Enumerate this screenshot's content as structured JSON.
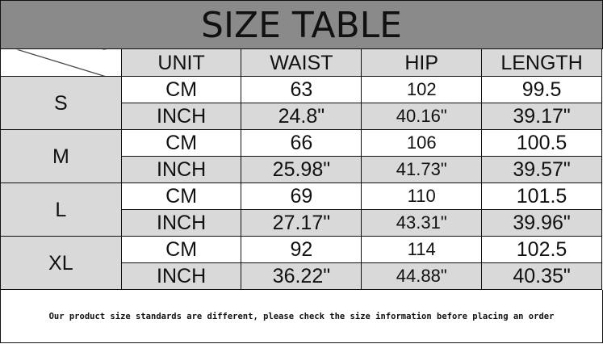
{
  "title": "SIZE TABLE",
  "headers": [
    "UNIT",
    "WAIST",
    "HIP",
    "LENGTH"
  ],
  "sizes": [
    {
      "size": "S",
      "rows": [
        [
          "CM",
          "63",
          "102",
          "99.5"
        ],
        [
          "INCH",
          "24.8\"",
          "40.16\"",
          "39.17\""
        ]
      ]
    },
    {
      "size": "M",
      "rows": [
        [
          "CM",
          "66",
          "106",
          "100.5"
        ],
        [
          "INCH",
          "25.98\"",
          "41.73\"",
          "39.57\""
        ]
      ]
    },
    {
      "size": "L",
      "rows": [
        [
          "CM",
          "69",
          "110",
          "101.5"
        ],
        [
          "INCH",
          "27.17\"",
          "43.31\"",
          "39.96\""
        ]
      ]
    },
    {
      "size": "XL",
      "rows": [
        [
          "CM",
          "92",
          "114",
          "102.5"
        ],
        [
          "INCH",
          "36.22\"",
          "44.88\"",
          "40.35\""
        ]
      ]
    }
  ],
  "footer": "Our product size standards are different, please check the size information before placing an order",
  "colors": {
    "title_bg": "#8a8a8a",
    "cell_gray": "#d9d9d9"
  }
}
